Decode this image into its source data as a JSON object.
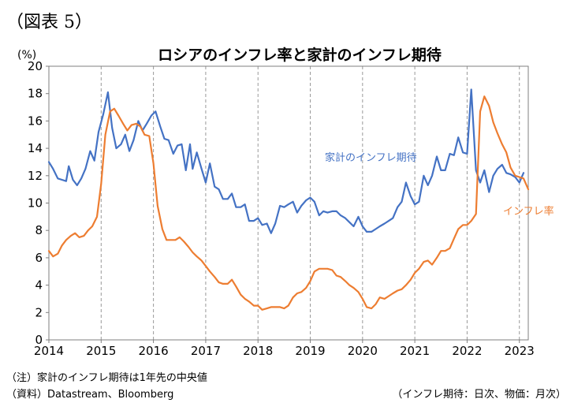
{
  "figure_label": "（図表 5）",
  "notes": {
    "note1": "（注）家計のインフレ期待は1年先の中央値",
    "source": "（資料）Datastream、Bloomberg",
    "freq": "（インフレ期待：日次、物価：月次）"
  },
  "chart_data": {
    "type": "line",
    "title": "ロシアのインフレ率と家計のインフレ期待",
    "ylabel": "(%)",
    "xlabel": "",
    "xlim": [
      2014.0,
      2023.17
    ],
    "ylim": [
      0,
      20
    ],
    "y_ticks": [
      0,
      2,
      4,
      6,
      8,
      10,
      12,
      14,
      16,
      18,
      20
    ],
    "x_ticks": [
      2014,
      2015,
      2016,
      2017,
      2018,
      2019,
      2020,
      2021,
      2022,
      2023
    ],
    "grid": "vertical dashed lines at each year",
    "series": [
      {
        "name": "家計のインフレ期待",
        "color": "#4472c4",
        "points": [
          [
            2014.0,
            13.0
          ],
          [
            2014.08,
            12.5
          ],
          [
            2014.17,
            11.8
          ],
          [
            2014.25,
            11.7
          ],
          [
            2014.33,
            11.6
          ],
          [
            2014.38,
            12.7
          ],
          [
            2014.46,
            11.7
          ],
          [
            2014.54,
            11.3
          ],
          [
            2014.62,
            11.8
          ],
          [
            2014.7,
            12.5
          ],
          [
            2014.79,
            13.8
          ],
          [
            2014.87,
            13.1
          ],
          [
            2014.95,
            15.2
          ],
          [
            2015.04,
            16.5
          ],
          [
            2015.13,
            18.1
          ],
          [
            2015.21,
            15.5
          ],
          [
            2015.29,
            14.0
          ],
          [
            2015.38,
            14.3
          ],
          [
            2015.46,
            15.0
          ],
          [
            2015.54,
            13.8
          ],
          [
            2015.62,
            14.6
          ],
          [
            2015.71,
            16.0
          ],
          [
            2015.79,
            15.3
          ],
          [
            2015.87,
            15.8
          ],
          [
            2015.96,
            16.4
          ],
          [
            2016.04,
            16.7
          ],
          [
            2016.13,
            15.6
          ],
          [
            2016.21,
            14.7
          ],
          [
            2016.29,
            14.6
          ],
          [
            2016.38,
            13.6
          ],
          [
            2016.46,
            14.2
          ],
          [
            2016.54,
            14.3
          ],
          [
            2016.62,
            12.4
          ],
          [
            2016.7,
            14.3
          ],
          [
            2016.75,
            12.5
          ],
          [
            2016.83,
            13.7
          ],
          [
            2016.92,
            12.5
          ],
          [
            2017.0,
            11.5
          ],
          [
            2017.08,
            12.9
          ],
          [
            2017.17,
            11.2
          ],
          [
            2017.25,
            11.0
          ],
          [
            2017.33,
            10.3
          ],
          [
            2017.42,
            10.3
          ],
          [
            2017.5,
            10.7
          ],
          [
            2017.58,
            9.7
          ],
          [
            2017.67,
            9.7
          ],
          [
            2017.75,
            9.9
          ],
          [
            2017.83,
            8.7
          ],
          [
            2017.92,
            8.7
          ],
          [
            2018.0,
            8.9
          ],
          [
            2018.08,
            8.4
          ],
          [
            2018.17,
            8.5
          ],
          [
            2018.25,
            7.8
          ],
          [
            2018.33,
            8.5
          ],
          [
            2018.42,
            9.8
          ],
          [
            2018.5,
            9.7
          ],
          [
            2018.58,
            9.9
          ],
          [
            2018.67,
            10.1
          ],
          [
            2018.75,
            9.3
          ],
          [
            2018.83,
            9.8
          ],
          [
            2018.92,
            10.2
          ],
          [
            2019.0,
            10.4
          ],
          [
            2019.08,
            10.1
          ],
          [
            2019.17,
            9.1
          ],
          [
            2019.25,
            9.4
          ],
          [
            2019.33,
            9.3
          ],
          [
            2019.42,
            9.4
          ],
          [
            2019.5,
            9.4
          ],
          [
            2019.58,
            9.1
          ],
          [
            2019.67,
            8.9
          ],
          [
            2019.75,
            8.6
          ],
          [
            2019.83,
            8.3
          ],
          [
            2019.92,
            9.0
          ],
          [
            2020.0,
            8.3
          ],
          [
            2020.08,
            7.9
          ],
          [
            2020.17,
            7.9
          ],
          [
            2020.25,
            8.1
          ],
          [
            2020.33,
            8.3
          ],
          [
            2020.42,
            8.5
          ],
          [
            2020.5,
            8.7
          ],
          [
            2020.58,
            8.9
          ],
          [
            2020.67,
            9.7
          ],
          [
            2020.75,
            10.1
          ],
          [
            2020.83,
            11.5
          ],
          [
            2020.92,
            10.5
          ],
          [
            2021.0,
            9.9
          ],
          [
            2021.08,
            10.1
          ],
          [
            2021.17,
            12.0
          ],
          [
            2021.25,
            11.3
          ],
          [
            2021.33,
            12.0
          ],
          [
            2021.42,
            13.4
          ],
          [
            2021.5,
            12.4
          ],
          [
            2021.58,
            12.4
          ],
          [
            2021.67,
            13.6
          ],
          [
            2021.75,
            13.5
          ],
          [
            2021.83,
            14.8
          ],
          [
            2021.92,
            13.7
          ],
          [
            2022.0,
            13.6
          ],
          [
            2022.08,
            18.3
          ],
          [
            2022.17,
            12.4
          ],
          [
            2022.25,
            11.5
          ],
          [
            2022.33,
            12.4
          ],
          [
            2022.42,
            10.8
          ],
          [
            2022.5,
            12.0
          ],
          [
            2022.58,
            12.5
          ],
          [
            2022.67,
            12.8
          ],
          [
            2022.75,
            12.2
          ],
          [
            2022.83,
            12.1
          ],
          [
            2022.92,
            11.9
          ],
          [
            2023.0,
            11.5
          ],
          [
            2023.08,
            12.2
          ]
        ]
      },
      {
        "name": "インフレ率",
        "color": "#ed7d31",
        "points": [
          [
            2014.0,
            6.5
          ],
          [
            2014.08,
            6.1
          ],
          [
            2014.17,
            6.3
          ],
          [
            2014.25,
            6.9
          ],
          [
            2014.33,
            7.3
          ],
          [
            2014.42,
            7.6
          ],
          [
            2014.5,
            7.8
          ],
          [
            2014.58,
            7.5
          ],
          [
            2014.67,
            7.6
          ],
          [
            2014.75,
            8.0
          ],
          [
            2014.83,
            8.3
          ],
          [
            2014.92,
            9.0
          ],
          [
            2015.0,
            11.4
          ],
          [
            2015.08,
            15.0
          ],
          [
            2015.17,
            16.7
          ],
          [
            2015.25,
            16.9
          ],
          [
            2015.33,
            16.4
          ],
          [
            2015.42,
            15.8
          ],
          [
            2015.5,
            15.3
          ],
          [
            2015.58,
            15.7
          ],
          [
            2015.67,
            15.8
          ],
          [
            2015.75,
            15.6
          ],
          [
            2015.83,
            15.0
          ],
          [
            2015.92,
            14.9
          ],
          [
            2016.0,
            12.9
          ],
          [
            2016.08,
            9.8
          ],
          [
            2016.17,
            8.1
          ],
          [
            2016.25,
            7.3
          ],
          [
            2016.33,
            7.3
          ],
          [
            2016.42,
            7.3
          ],
          [
            2016.5,
            7.5
          ],
          [
            2016.58,
            7.2
          ],
          [
            2016.67,
            6.8
          ],
          [
            2016.75,
            6.4
          ],
          [
            2016.83,
            6.1
          ],
          [
            2016.92,
            5.8
          ],
          [
            2017.0,
            5.4
          ],
          [
            2017.08,
            5.0
          ],
          [
            2017.17,
            4.6
          ],
          [
            2017.25,
            4.2
          ],
          [
            2017.33,
            4.1
          ],
          [
            2017.42,
            4.1
          ],
          [
            2017.5,
            4.4
          ],
          [
            2017.58,
            3.9
          ],
          [
            2017.67,
            3.3
          ],
          [
            2017.75,
            3.0
          ],
          [
            2017.83,
            2.8
          ],
          [
            2017.92,
            2.5
          ],
          [
            2018.0,
            2.5
          ],
          [
            2018.08,
            2.2
          ],
          [
            2018.17,
            2.3
          ],
          [
            2018.25,
            2.4
          ],
          [
            2018.33,
            2.4
          ],
          [
            2018.42,
            2.4
          ],
          [
            2018.5,
            2.3
          ],
          [
            2018.58,
            2.5
          ],
          [
            2018.67,
            3.1
          ],
          [
            2018.75,
            3.4
          ],
          [
            2018.83,
            3.5
          ],
          [
            2018.92,
            3.8
          ],
          [
            2019.0,
            4.3
          ],
          [
            2019.08,
            5.0
          ],
          [
            2019.17,
            5.2
          ],
          [
            2019.25,
            5.2
          ],
          [
            2019.33,
            5.2
          ],
          [
            2019.42,
            5.1
          ],
          [
            2019.5,
            4.7
          ],
          [
            2019.58,
            4.6
          ],
          [
            2019.67,
            4.3
          ],
          [
            2019.75,
            4.0
          ],
          [
            2019.83,
            3.8
          ],
          [
            2019.92,
            3.5
          ],
          [
            2020.0,
            3.0
          ],
          [
            2020.08,
            2.4
          ],
          [
            2020.17,
            2.3
          ],
          [
            2020.25,
            2.6
          ],
          [
            2020.33,
            3.1
          ],
          [
            2020.42,
            3.0
          ],
          [
            2020.5,
            3.2
          ],
          [
            2020.58,
            3.4
          ],
          [
            2020.67,
            3.6
          ],
          [
            2020.75,
            3.7
          ],
          [
            2020.83,
            4.0
          ],
          [
            2020.92,
            4.4
          ],
          [
            2021.0,
            4.9
          ],
          [
            2021.08,
            5.2
          ],
          [
            2021.17,
            5.7
          ],
          [
            2021.25,
            5.8
          ],
          [
            2021.33,
            5.5
          ],
          [
            2021.42,
            6.0
          ],
          [
            2021.5,
            6.5
          ],
          [
            2021.58,
            6.5
          ],
          [
            2021.67,
            6.7
          ],
          [
            2021.75,
            7.4
          ],
          [
            2021.83,
            8.1
          ],
          [
            2021.92,
            8.4
          ],
          [
            2022.0,
            8.4
          ],
          [
            2022.08,
            8.7
          ],
          [
            2022.17,
            9.2
          ],
          [
            2022.25,
            16.7
          ],
          [
            2022.33,
            17.8
          ],
          [
            2022.42,
            17.1
          ],
          [
            2022.5,
            15.9
          ],
          [
            2022.58,
            15.1
          ],
          [
            2022.67,
            14.3
          ],
          [
            2022.75,
            13.7
          ],
          [
            2022.83,
            12.6
          ],
          [
            2022.92,
            12.0
          ],
          [
            2023.0,
            11.9
          ],
          [
            2023.08,
            11.8
          ],
          [
            2023.17,
            11.0
          ]
        ]
      }
    ],
    "annotations": [
      {
        "series": 0,
        "text": "家計のインフレ期待"
      },
      {
        "series": 1,
        "text": "インフレ率"
      }
    ]
  }
}
